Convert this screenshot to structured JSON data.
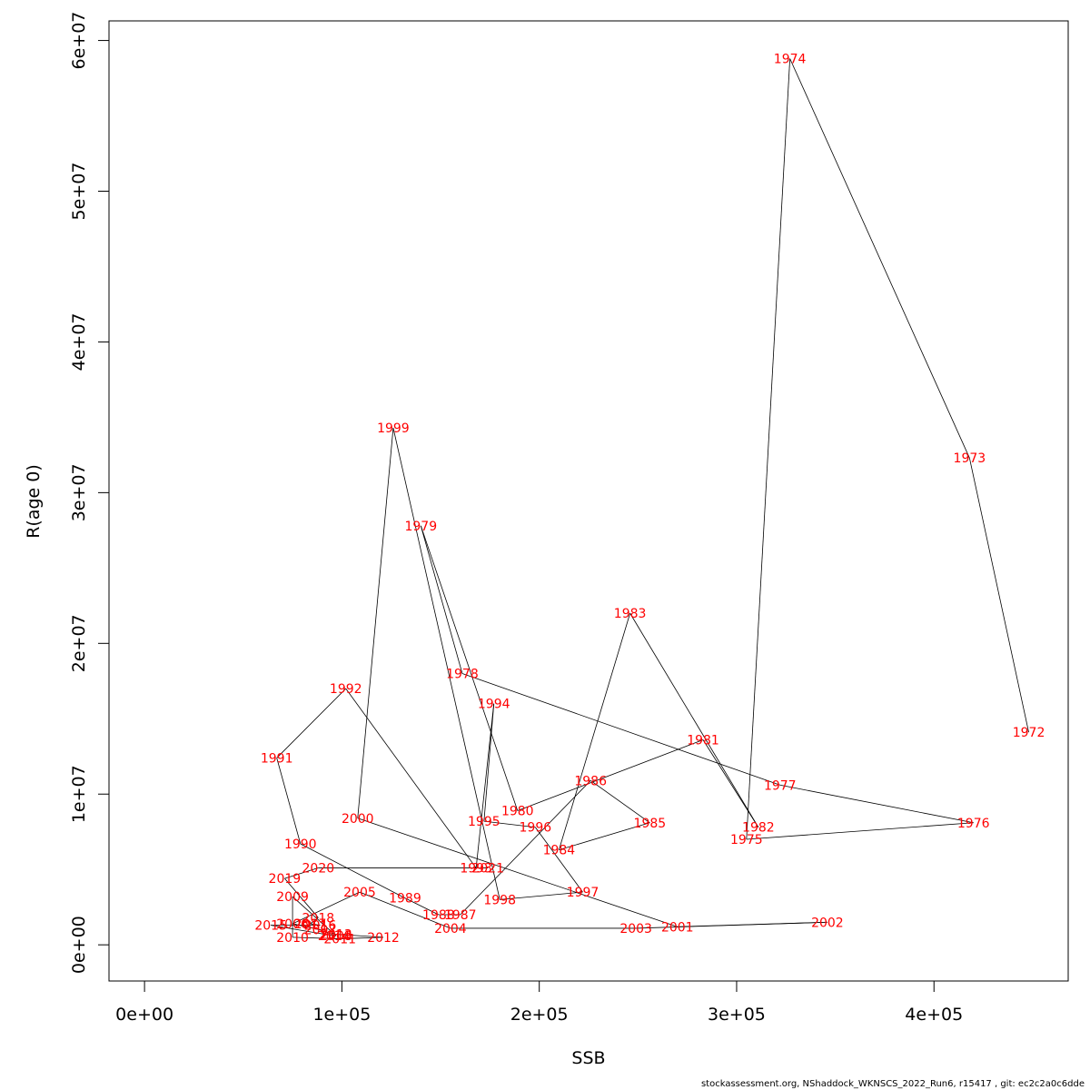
{
  "chart_data": {
    "type": "line",
    "xlabel": "SSB",
    "ylabel": "R(age 0)",
    "xlim": [
      -18000,
      468000
    ],
    "ylim": [
      -2400000,
      61300000
    ],
    "x_ticks": [
      0,
      100000,
      200000,
      300000,
      400000
    ],
    "x_tick_labels": [
      "0e+00",
      "1e+05",
      "2e+05",
      "3e+05",
      "4e+05"
    ],
    "y_ticks": [
      0,
      10000000,
      20000000,
      30000000,
      40000000,
      50000000,
      60000000
    ],
    "y_tick_labels": [
      "0e+00",
      "1e+07",
      "2e+07",
      "3e+07",
      "4e+07",
      "5e+07",
      "6e+07"
    ],
    "grid": false,
    "label_color": "#ff0000",
    "line_color": "#000000",
    "points": [
      {
        "year": "1972",
        "x": 448000,
        "y": 14100000
      },
      {
        "year": "1973",
        "x": 418000,
        "y": 32300000
      },
      {
        "year": "1974",
        "x": 327000,
        "y": 58800000
      },
      {
        "year": "1975",
        "x": 305000,
        "y": 7000000
      },
      {
        "year": "1976",
        "x": 420000,
        "y": 8100000
      },
      {
        "year": "1977",
        "x": 322000,
        "y": 10600000
      },
      {
        "year": "1978",
        "x": 161000,
        "y": 18000000
      },
      {
        "year": "1979",
        "x": 140000,
        "y": 27800000
      },
      {
        "year": "1980",
        "x": 189000,
        "y": 8900000
      },
      {
        "year": "1981",
        "x": 283000,
        "y": 13600000
      },
      {
        "year": "1982",
        "x": 311000,
        "y": 7800000
      },
      {
        "year": "1983",
        "x": 246000,
        "y": 22000000
      },
      {
        "year": "1984",
        "x": 210000,
        "y": 6300000
      },
      {
        "year": "1985",
        "x": 256000,
        "y": 8100000
      },
      {
        "year": "1986",
        "x": 226000,
        "y": 10900000
      },
      {
        "year": "1987",
        "x": 160000,
        "y": 2000000
      },
      {
        "year": "1988",
        "x": 149000,
        "y": 2000000
      },
      {
        "year": "1989",
        "x": 132000,
        "y": 3100000
      },
      {
        "year": "1990",
        "x": 79000,
        "y": 6700000
      },
      {
        "year": "1991",
        "x": 67000,
        "y": 12400000
      },
      {
        "year": "1992",
        "x": 102000,
        "y": 17000000
      },
      {
        "year": "1993",
        "x": 168000,
        "y": 5100000
      },
      {
        "year": "1994",
        "x": 177000,
        "y": 16000000
      },
      {
        "year": "1995",
        "x": 172000,
        "y": 8200000
      },
      {
        "year": "1996",
        "x": 198000,
        "y": 7800000
      },
      {
        "year": "1997",
        "x": 222000,
        "y": 3500000
      },
      {
        "year": "1998",
        "x": 180000,
        "y": 3000000
      },
      {
        "year": "1999",
        "x": 126000,
        "y": 34300000
      },
      {
        "year": "2000",
        "x": 108000,
        "y": 8400000
      },
      {
        "year": "2001",
        "x": 270000,
        "y": 1200000
      },
      {
        "year": "2002",
        "x": 346000,
        "y": 1500000
      },
      {
        "year": "2003",
        "x": 249000,
        "y": 1100000
      },
      {
        "year": "2004",
        "x": 155000,
        "y": 1100000
      },
      {
        "year": "2005",
        "x": 109000,
        "y": 3500000
      },
      {
        "year": "2006",
        "x": 75000,
        "y": 1400000
      },
      {
        "year": "2007",
        "x": 89000,
        "y": 1000000
      },
      {
        "year": "2008",
        "x": 97000,
        "y": 600000
      },
      {
        "year": "2009",
        "x": 75000,
        "y": 3200000
      },
      {
        "year": "2010",
        "x": 75000,
        "y": 500000
      },
      {
        "year": "2011",
        "x": 99000,
        "y": 400000
      },
      {
        "year": "2012",
        "x": 121000,
        "y": 500000
      },
      {
        "year": "2013",
        "x": 97000,
        "y": 700000
      },
      {
        "year": "2014",
        "x": 96000,
        "y": 600000
      },
      {
        "year": "2015",
        "x": 64000,
        "y": 1300000
      },
      {
        "year": "2016",
        "x": 89000,
        "y": 1300000
      },
      {
        "year": "2017",
        "x": 84000,
        "y": 1400000
      },
      {
        "year": "2018",
        "x": 88000,
        "y": 1800000
      },
      {
        "year": "2019",
        "x": 71000,
        "y": 4400000
      },
      {
        "year": "2020",
        "x": 88000,
        "y": 5100000
      },
      {
        "year": "2021",
        "x": 174000,
        "y": 5100000
      }
    ]
  },
  "footer": "stockassessment.org, NShaddock_WKNSCS_2022_Run6, r15417 , git: ec2c2a0c6dde"
}
